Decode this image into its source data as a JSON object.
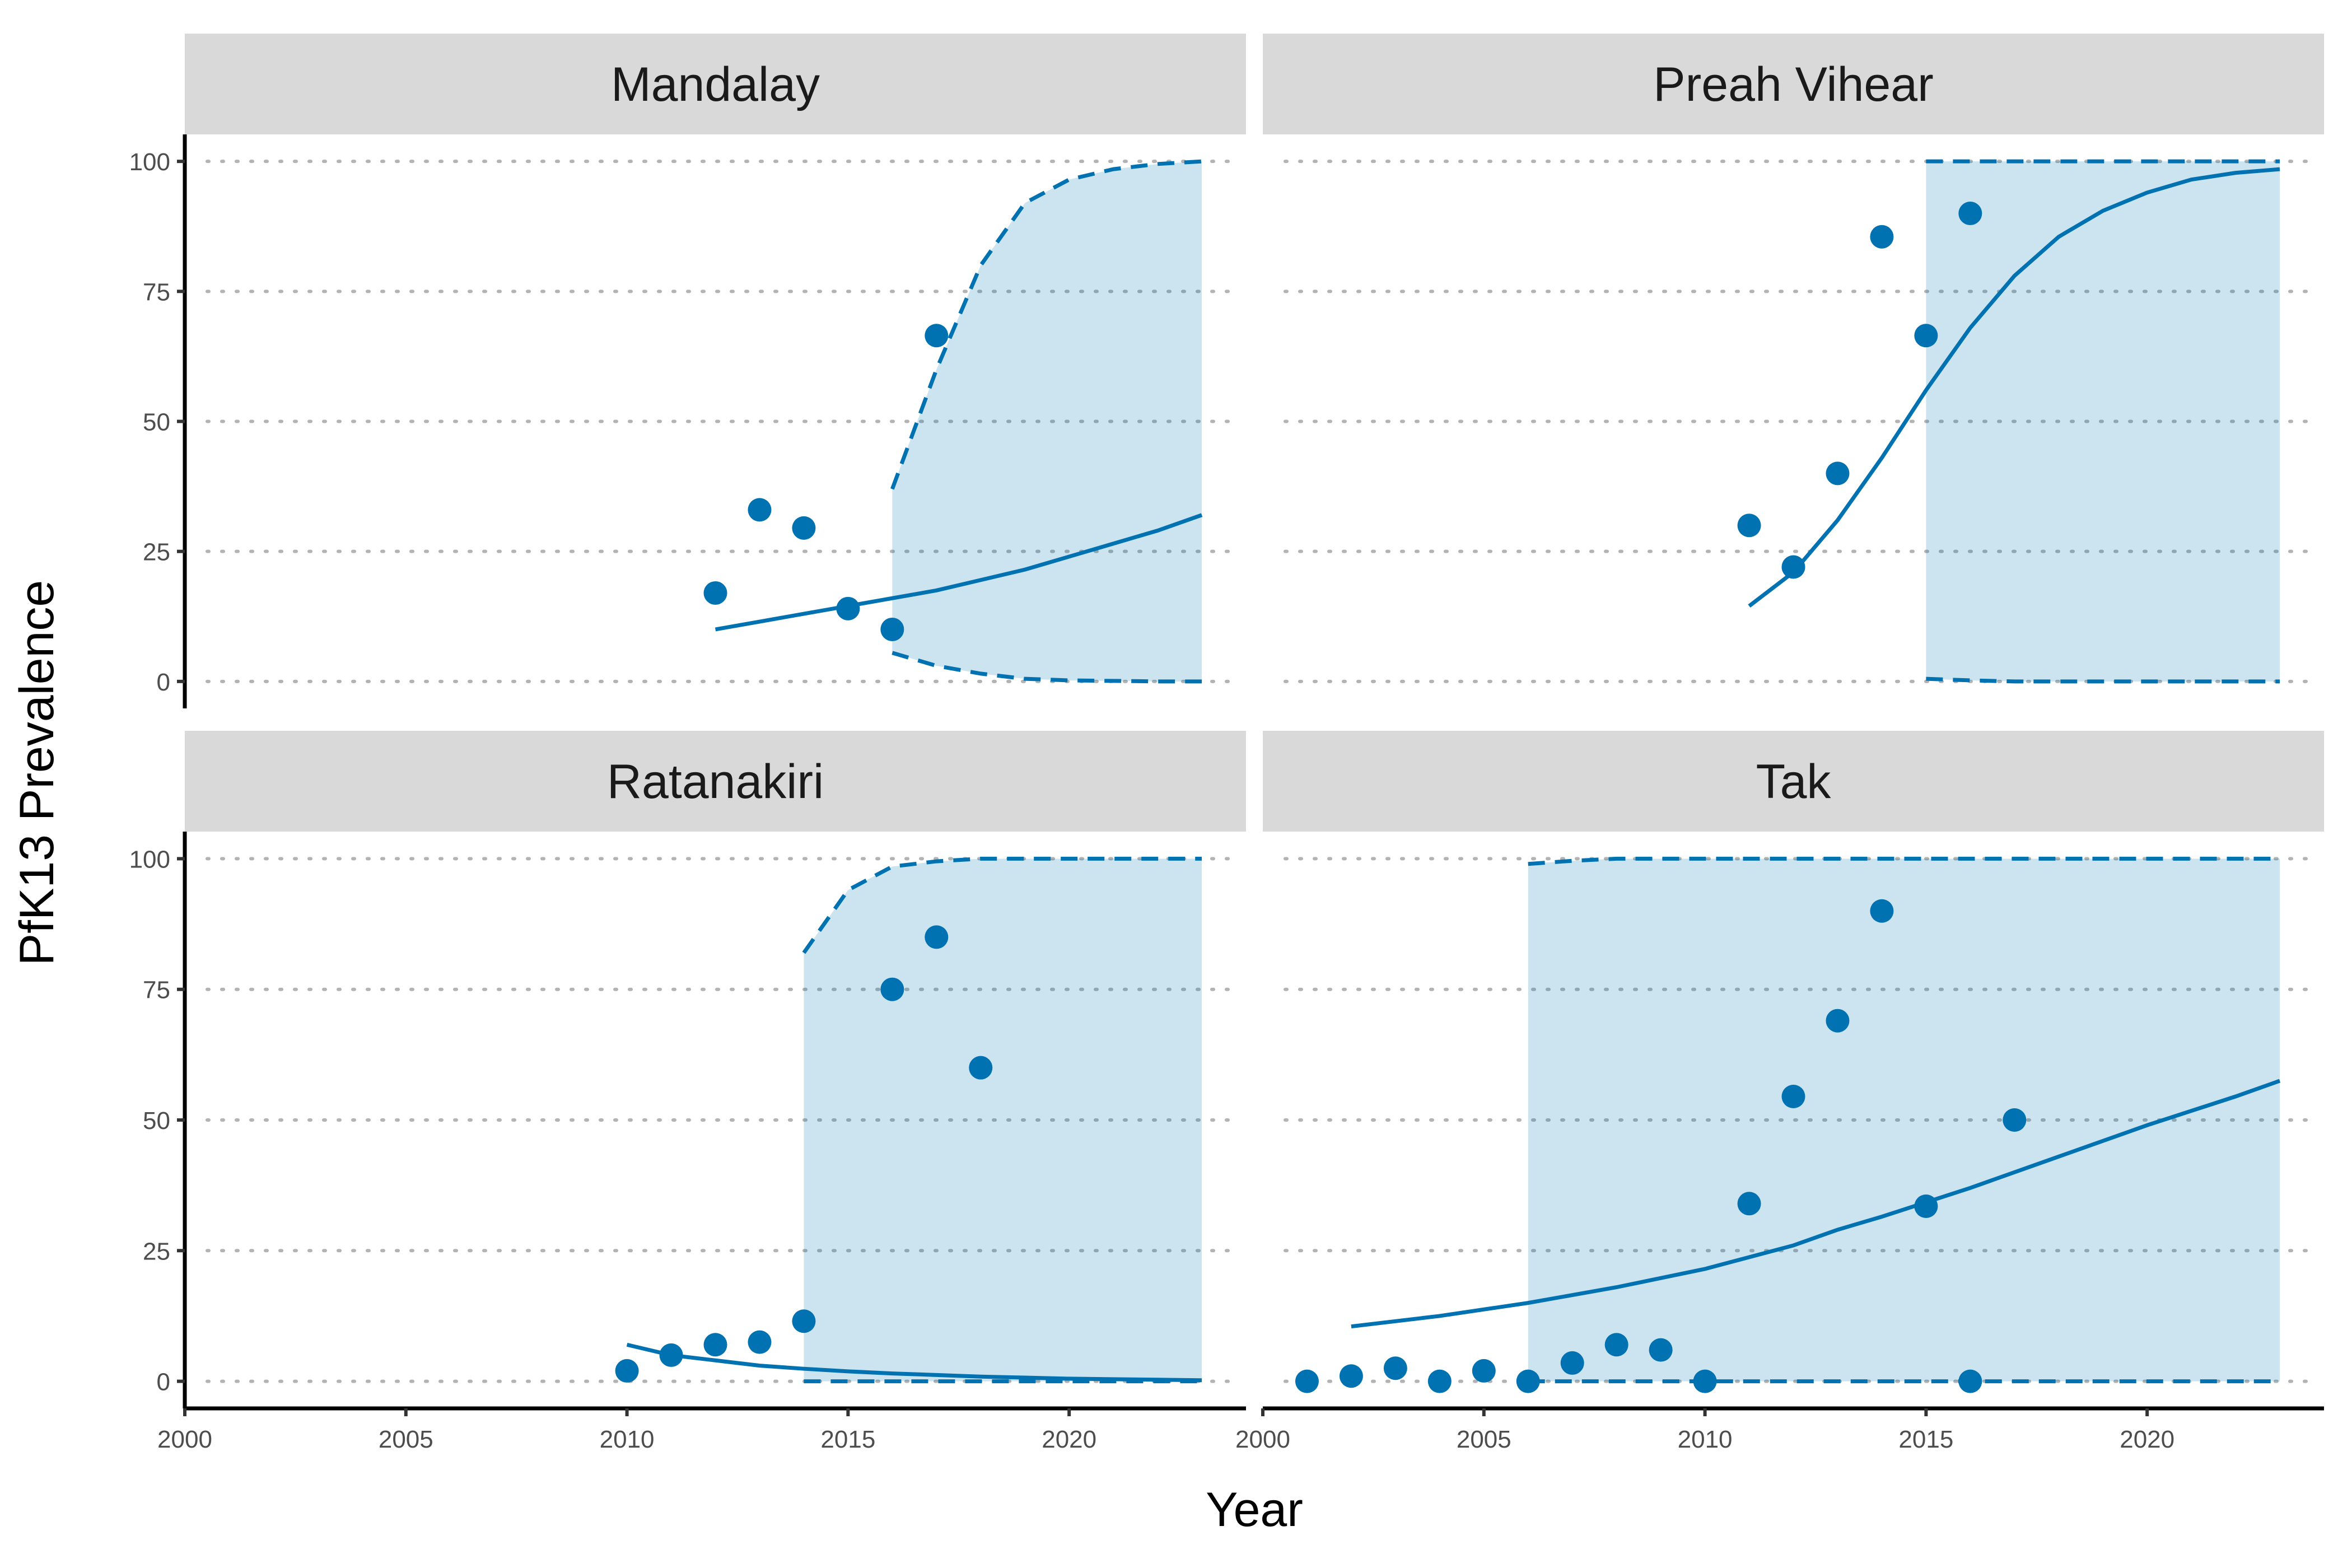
{
  "chart_data": {
    "type": "scatter",
    "xlabel": "Year",
    "ylabel": "PfK13 Prevalence",
    "xlim": [
      2000,
      2024
    ],
    "ylim": [
      0,
      100
    ],
    "x_ticks": [
      2000,
      2005,
      2010,
      2015,
      2020
    ],
    "x_tick_labels": [
      "2000",
      "2005",
      "2010",
      "2015",
      "2020"
    ],
    "y_ticks": [
      0,
      25,
      50,
      75,
      100
    ],
    "y_tick_labels": [
      "0",
      "25",
      "50",
      "75",
      "100"
    ],
    "grid": "horizontal-dotted",
    "colors": {
      "series": "#0072b2",
      "band": "#0072b2",
      "strip": "#d9d9d9"
    },
    "panels": [
      {
        "name": "Mandalay",
        "points": [
          [
            2012,
            17
          ],
          [
            2013,
            33
          ],
          [
            2014,
            29.5
          ],
          [
            2015,
            14
          ],
          [
            2016,
            10
          ],
          [
            2017,
            66.5
          ]
        ],
        "fit": [
          [
            2012,
            10
          ],
          [
            2013,
            11.5
          ],
          [
            2014,
            13
          ],
          [
            2015,
            14.5
          ],
          [
            2016,
            16
          ],
          [
            2017,
            17.5
          ],
          [
            2018,
            19.5
          ],
          [
            2019,
            21.5
          ],
          [
            2020,
            24
          ],
          [
            2021,
            26.5
          ],
          [
            2022,
            29
          ],
          [
            2023,
            32
          ]
        ],
        "ci_start": 2016,
        "ci_upper": [
          [
            2016,
            37
          ],
          [
            2017,
            60
          ],
          [
            2018,
            80
          ],
          [
            2019,
            92
          ],
          [
            2020,
            96.5
          ],
          [
            2021,
            98.5
          ],
          [
            2022,
            99.5
          ],
          [
            2023,
            100
          ]
        ],
        "ci_lower": [
          [
            2016,
            5.5
          ],
          [
            2017,
            3
          ],
          [
            2018,
            1.5
          ],
          [
            2019,
            0.5
          ],
          [
            2020,
            0.2
          ],
          [
            2021,
            0.1
          ],
          [
            2022,
            0
          ],
          [
            2023,
            0
          ]
        ]
      },
      {
        "name": "Preah Vihear",
        "points": [
          [
            2011,
            30
          ],
          [
            2012,
            22
          ],
          [
            2013,
            40
          ],
          [
            2014,
            85.5
          ],
          [
            2015,
            66.5
          ],
          [
            2016,
            90
          ]
        ],
        "fit": [
          [
            2011,
            14.5
          ],
          [
            2012,
            21
          ],
          [
            2013,
            31
          ],
          [
            2014,
            43
          ],
          [
            2015,
            56
          ],
          [
            2016,
            68
          ],
          [
            2017,
            78
          ],
          [
            2018,
            85.5
          ],
          [
            2019,
            90.5
          ],
          [
            2020,
            94
          ],
          [
            2021,
            96.5
          ],
          [
            2022,
            97.8
          ],
          [
            2023,
            98.5
          ]
        ],
        "ci_start": 2015,
        "ci_upper": [
          [
            2015,
            100
          ],
          [
            2016,
            100
          ],
          [
            2017,
            100
          ],
          [
            2018,
            100
          ],
          [
            2019,
            100
          ],
          [
            2020,
            100
          ],
          [
            2021,
            100
          ],
          [
            2022,
            100
          ],
          [
            2023,
            100
          ]
        ],
        "ci_lower": [
          [
            2015,
            0.5
          ],
          [
            2016,
            0.2
          ],
          [
            2017,
            0
          ],
          [
            2018,
            0
          ],
          [
            2019,
            0
          ],
          [
            2020,
            0
          ],
          [
            2021,
            0
          ],
          [
            2022,
            0
          ],
          [
            2023,
            0
          ]
        ]
      },
      {
        "name": "Ratanakiri",
        "points": [
          [
            2010,
            2
          ],
          [
            2011,
            5
          ],
          [
            2012,
            7
          ],
          [
            2013,
            7.5
          ],
          [
            2014,
            11.5
          ],
          [
            2016,
            75
          ],
          [
            2017,
            85
          ],
          [
            2018,
            60
          ]
        ],
        "fit": [
          [
            2010,
            7
          ],
          [
            2011,
            5
          ],
          [
            2012,
            4
          ],
          [
            2013,
            3
          ],
          [
            2014,
            2.4
          ],
          [
            2015,
            1.9
          ],
          [
            2016,
            1.5
          ],
          [
            2017,
            1.2
          ],
          [
            2018,
            0.9
          ],
          [
            2019,
            0.7
          ],
          [
            2020,
            0.5
          ],
          [
            2021,
            0.4
          ],
          [
            2022,
            0.3
          ],
          [
            2023,
            0.2
          ]
        ],
        "ci_start": 2014,
        "ci_upper": [
          [
            2014,
            82
          ],
          [
            2015,
            94
          ],
          [
            2016,
            98.5
          ],
          [
            2017,
            99.5
          ],
          [
            2018,
            100
          ],
          [
            2019,
            100
          ],
          [
            2020,
            100
          ],
          [
            2021,
            100
          ],
          [
            2022,
            100
          ],
          [
            2023,
            100
          ]
        ],
        "ci_lower": [
          [
            2014,
            0
          ],
          [
            2015,
            0
          ],
          [
            2016,
            0
          ],
          [
            2017,
            0
          ],
          [
            2018,
            0
          ],
          [
            2019,
            0
          ],
          [
            2020,
            0
          ],
          [
            2021,
            0
          ],
          [
            2022,
            0
          ],
          [
            2023,
            0
          ]
        ]
      },
      {
        "name": "Tak",
        "points": [
          [
            2001,
            0
          ],
          [
            2002,
            1
          ],
          [
            2003,
            2.5
          ],
          [
            2004,
            0
          ],
          [
            2005,
            2
          ],
          [
            2006,
            0
          ],
          [
            2007,
            3.5
          ],
          [
            2008,
            7
          ],
          [
            2009,
            6
          ],
          [
            2010,
            0
          ],
          [
            2011,
            34
          ],
          [
            2012,
            54.5
          ],
          [
            2013,
            69
          ],
          [
            2014,
            90
          ],
          [
            2015,
            33.5
          ],
          [
            2016,
            0
          ],
          [
            2017,
            50
          ]
        ],
        "fit": [
          [
            2002,
            10.5
          ],
          [
            2004,
            12.5
          ],
          [
            2006,
            15
          ],
          [
            2008,
            18
          ],
          [
            2010,
            21.5
          ],
          [
            2012,
            26
          ],
          [
            2013,
            29
          ],
          [
            2014,
            31.5
          ],
          [
            2016,
            37
          ],
          [
            2018,
            43
          ],
          [
            2020,
            49
          ],
          [
            2022,
            54.5
          ],
          [
            2023,
            57.5
          ]
        ],
        "ci_start": 2006,
        "ci_upper": [
          [
            2006,
            99
          ],
          [
            2007,
            99.6
          ],
          [
            2008,
            100
          ],
          [
            2010,
            100
          ],
          [
            2015,
            100
          ],
          [
            2020,
            100
          ],
          [
            2023,
            100
          ]
        ],
        "ci_lower": [
          [
            2006,
            0
          ],
          [
            2010,
            0
          ],
          [
            2015,
            0
          ],
          [
            2020,
            0
          ],
          [
            2023,
            0
          ]
        ]
      }
    ]
  }
}
